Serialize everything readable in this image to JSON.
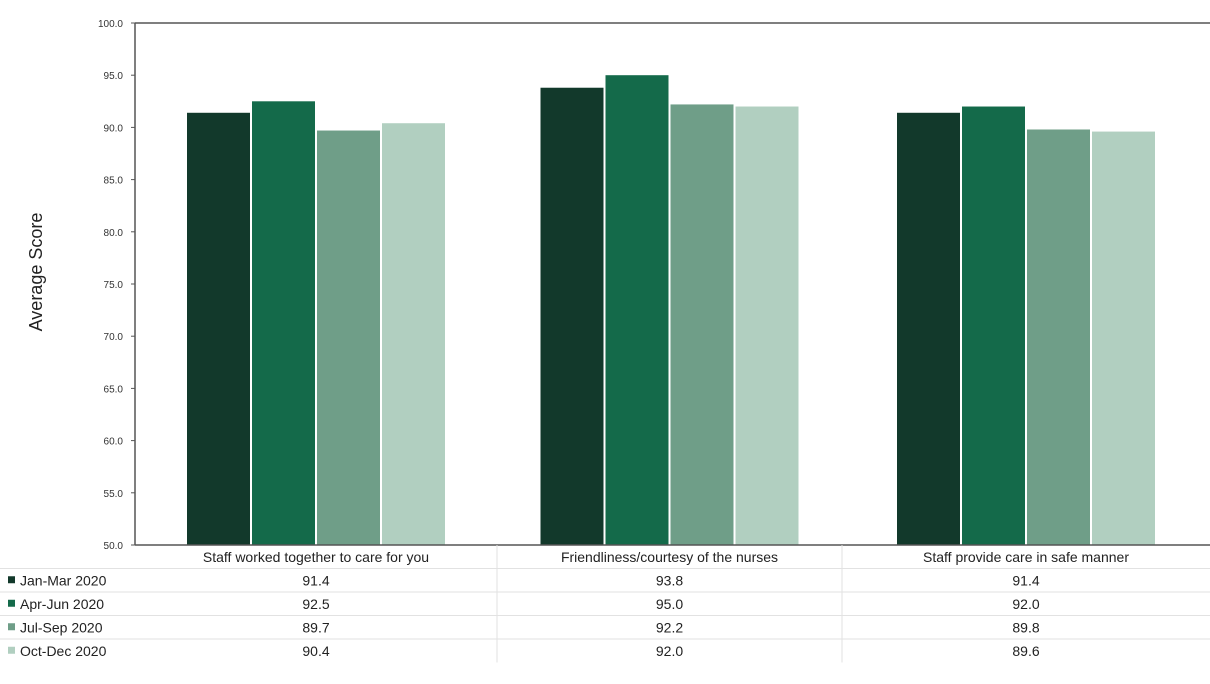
{
  "chart_data": {
    "type": "bar",
    "title": "",
    "ylabel": "Average Score",
    "xlabel": "",
    "ylim": [
      50,
      100
    ],
    "yticks": [
      "50.0",
      "55.0",
      "60.0",
      "65.0",
      "70.0",
      "75.0",
      "80.0",
      "85.0",
      "90.0",
      "95.0",
      "100.0"
    ],
    "categories": [
      "Staff worked together to care for you",
      "Friendliness/courtesy of the nurses",
      "Staff provide care in safe manner"
    ],
    "series": [
      {
        "name": "Jan-Mar 2020",
        "color": "#12392b",
        "values": [
          91.4,
          93.8,
          91.4
        ],
        "labels": [
          "91.4",
          "93.8",
          "91.4"
        ]
      },
      {
        "name": "Apr-Jun 2020",
        "color": "#146a4a",
        "values": [
          92.5,
          95.0,
          92.0
        ],
        "labels": [
          "92.5",
          "95.0",
          "92.0"
        ]
      },
      {
        "name": "Jul-Sep 2020",
        "color": "#6f9e88",
        "values": [
          89.7,
          92.2,
          89.8
        ],
        "labels": [
          "89.7",
          "92.2",
          "89.8"
        ]
      },
      {
        "name": "Oct-Dec 2020",
        "color": "#b1cfc0",
        "values": [
          90.4,
          92.0,
          89.6
        ],
        "labels": [
          "90.4",
          "92.0",
          "89.6"
        ]
      }
    ],
    "grid": false,
    "legend": "data-table"
  }
}
